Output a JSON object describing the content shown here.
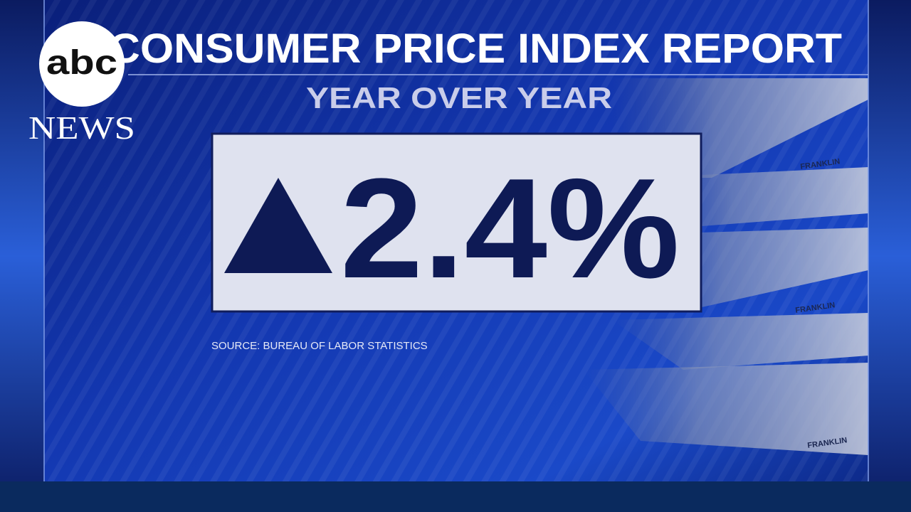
{
  "logo": {
    "mark": "abc",
    "word": "NEWS"
  },
  "graphic": {
    "title": "CONSUMER PRICE INDEX REPORT",
    "subtitle": "YEAR OVER YEAR",
    "headline_value": "2.4%",
    "source": "SOURCE: BUREAU OF LABOR STATISTICS"
  },
  "background": {
    "bill_text": "FRANKLIN"
  }
}
